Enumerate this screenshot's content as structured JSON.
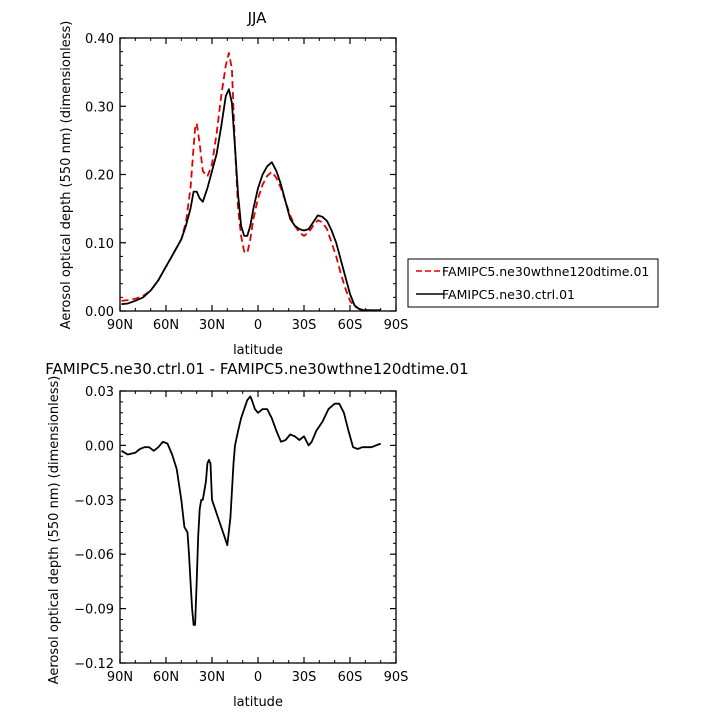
{
  "chart_data": [
    {
      "type": "line",
      "title": "JJA",
      "xlabel": "latitude",
      "ylabel": "Aerosol optical depth (550 nm) (dimensionless)",
      "xlim": [
        90,
        -90
      ],
      "ylim": [
        0.0,
        0.4
      ],
      "x_ticks": [
        90,
        60,
        30,
        0,
        -30,
        -60,
        -90
      ],
      "x_tick_labels": [
        "90N",
        "60N",
        "30N",
        "0",
        "30S",
        "60S",
        "90S"
      ],
      "y_ticks": [
        0.0,
        0.1,
        0.2,
        0.3,
        0.4
      ],
      "y_tick_labels": [
        "0.00",
        "0.10",
        "0.20",
        "0.30",
        "0.40"
      ],
      "legend_position": "right",
      "series": [
        {
          "name": "FAMIPC5.ne30wthne120dtime.01",
          "color": "#e00000",
          "dash": "dashed",
          "x": [
            89,
            85,
            80,
            75,
            70,
            65,
            60,
            55,
            50,
            47,
            44,
            42,
            41,
            40,
            38,
            36,
            33,
            30,
            27,
            24,
            21,
            19,
            17,
            15,
            13,
            11,
            9,
            7,
            5,
            3,
            0,
            -3,
            -6,
            -9,
            -12,
            -15,
            -18,
            -21,
            -24,
            -27,
            -30,
            -33,
            -36,
            -39,
            -42,
            -45,
            -48,
            -51,
            -54,
            -57,
            -60,
            -63,
            -66,
            -69,
            -72,
            -75,
            -78,
            -80
          ],
          "values": [
            0.015,
            0.016,
            0.018,
            0.022,
            0.03,
            0.045,
            0.065,
            0.085,
            0.105,
            0.13,
            0.18,
            0.24,
            0.268,
            0.275,
            0.245,
            0.205,
            0.197,
            0.215,
            0.26,
            0.315,
            0.36,
            0.378,
            0.355,
            0.24,
            0.15,
            0.11,
            0.087,
            0.085,
            0.105,
            0.135,
            0.165,
            0.185,
            0.198,
            0.204,
            0.195,
            0.18,
            0.16,
            0.14,
            0.125,
            0.115,
            0.11,
            0.115,
            0.125,
            0.133,
            0.13,
            0.12,
            0.1,
            0.08,
            0.055,
            0.033,
            0.015,
            0.007,
            0.003,
            0.002,
            0.001,
            0.001,
            0.001,
            0.001
          ]
        },
        {
          "name": "FAMIPC5.ne30.ctrl.01",
          "color": "#000000",
          "dash": "solid",
          "x": [
            89,
            85,
            80,
            75,
            70,
            65,
            60,
            55,
            50,
            47,
            44,
            42,
            40,
            38,
            36,
            33,
            30,
            27,
            24,
            21,
            19,
            17,
            15,
            13,
            11,
            9,
            7,
            5,
            3,
            0,
            -3,
            -6,
            -9,
            -12,
            -15,
            -18,
            -21,
            -24,
            -27,
            -30,
            -33,
            -36,
            -39,
            -42,
            -45,
            -48,
            -51,
            -54,
            -57,
            -60,
            -63,
            -66,
            -69,
            -72,
            -75,
            -78,
            -80
          ],
          "values": [
            0.01,
            0.011,
            0.015,
            0.02,
            0.03,
            0.045,
            0.065,
            0.085,
            0.105,
            0.125,
            0.15,
            0.175,
            0.175,
            0.165,
            0.16,
            0.18,
            0.205,
            0.23,
            0.27,
            0.315,
            0.325,
            0.305,
            0.24,
            0.17,
            0.125,
            0.11,
            0.11,
            0.125,
            0.15,
            0.18,
            0.2,
            0.212,
            0.218,
            0.205,
            0.185,
            0.16,
            0.135,
            0.125,
            0.12,
            0.118,
            0.12,
            0.13,
            0.14,
            0.138,
            0.132,
            0.118,
            0.1,
            0.075,
            0.05,
            0.025,
            0.008,
            0.003,
            0.001,
            0.001,
            0.001,
            0.001,
            0.001
          ]
        }
      ]
    },
    {
      "type": "line",
      "title": "FAMIPC5.ne30.ctrl.01 - FAMIPC5.ne30wthne120dtime.01",
      "xlabel": "latitude",
      "ylabel": "Aerosol optical depth (550 nm) (dimensionless)",
      "xlim": [
        90,
        -90
      ],
      "ylim": [
        -0.12,
        0.03
      ],
      "x_ticks": [
        90,
        60,
        30,
        0,
        -30,
        -60,
        -90
      ],
      "x_tick_labels": [
        "90N",
        "60N",
        "30N",
        "0",
        "30S",
        "60S",
        "90S"
      ],
      "y_ticks": [
        -0.12,
        -0.09,
        -0.06,
        -0.03,
        0.0,
        0.03
      ],
      "y_tick_labels": [
        "-0.12",
        "-0.09",
        "-0.06",
        "-0.03",
        "0.00",
        "0.03"
      ],
      "series": [
        {
          "color": "#000000",
          "dash": "solid",
          "x": [
            89,
            85,
            80,
            77,
            74,
            71,
            68,
            65,
            62,
            59,
            56,
            53,
            50,
            48,
            46,
            45,
            44,
            43,
            42,
            41,
            40,
            39,
            38,
            37,
            36,
            34,
            33,
            32,
            31,
            30,
            28,
            26,
            24,
            22,
            20,
            18,
            16,
            15,
            13,
            11,
            9,
            7,
            5,
            4,
            2,
            0,
            -3,
            -6,
            -9,
            -12,
            -15,
            -18,
            -21,
            -24,
            -27,
            -30,
            -33,
            -35,
            -38,
            -42,
            -46,
            -50,
            -53,
            -56,
            -59,
            -62,
            -65,
            -68,
            -71,
            -74,
            -77,
            -80
          ],
          "values": [
            -0.003,
            -0.005,
            -0.004,
            -0.002,
            -0.001,
            -0.001,
            -0.003,
            -0.001,
            0.002,
            0.001,
            -0.005,
            -0.013,
            -0.03,
            -0.045,
            -0.048,
            -0.06,
            -0.075,
            -0.09,
            -0.099,
            -0.099,
            -0.075,
            -0.05,
            -0.035,
            -0.03,
            -0.03,
            -0.02,
            -0.01,
            -0.008,
            -0.01,
            -0.03,
            -0.035,
            -0.04,
            -0.045,
            -0.05,
            -0.055,
            -0.04,
            -0.01,
            0.0,
            0.008,
            0.015,
            0.02,
            0.025,
            0.027,
            0.025,
            0.02,
            0.018,
            0.02,
            0.02,
            0.015,
            0.008,
            0.002,
            0.003,
            0.006,
            0.005,
            0.003,
            0.005,
            0.0,
            0.002,
            0.008,
            0.013,
            0.02,
            0.023,
            0.023,
            0.018,
            0.008,
            -0.001,
            -0.002,
            -0.001,
            -0.001,
            -0.001,
            0.0,
            0.001
          ]
        }
      ]
    }
  ]
}
